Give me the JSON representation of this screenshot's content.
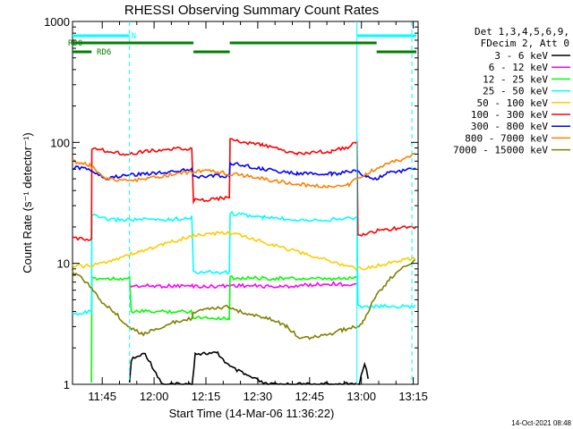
{
  "chart_data": {
    "type": "line",
    "title": "RHESSI Observing Summary Count Rates",
    "xlabel": "Start Time (14-Mar-06 11:36:22)",
    "ylabel": "Count Rate (s⁻¹ detector⁻¹)",
    "yscale": "log",
    "ylim": [
      1,
      1000
    ],
    "xlim_minutes": [
      0,
      100
    ],
    "x_ticks": [
      {
        "t": 8.6,
        "label": "11:45"
      },
      {
        "t": 23.6,
        "label": "12:00"
      },
      {
        "t": 38.6,
        "label": "12:15"
      },
      {
        "t": 53.6,
        "label": "12:30"
      },
      {
        "t": 68.6,
        "label": "12:45"
      },
      {
        "t": 83.6,
        "label": "13:00"
      },
      {
        "t": 98.6,
        "label": "13:15"
      }
    ],
    "y_ticks": [
      {
        "v": 1,
        "label": "1"
      },
      {
        "v": 10,
        "label": "10"
      },
      {
        "v": 100,
        "label": "100"
      },
      {
        "v": 1000,
        "label": "1000"
      }
    ],
    "legend_header": [
      "Det 1,3,4,5,6,9,",
      "FDecim 2, Att 0"
    ],
    "legend_placement": "right",
    "footer_date": "14-Oct-2021 08:48",
    "flags": {
      "n_label": "N",
      "rd0_label": "RD0",
      "rd6_label": "RD6",
      "n_color": "#00ffff",
      "rd_color": "#008000",
      "n_intervals": [
        [
          0,
          16.5
        ],
        [
          82.3,
          99.5
        ]
      ],
      "rd0_intervals": [
        [
          0,
          35
        ],
        [
          45.5,
          88
        ]
      ],
      "rd6_intervals": [
        [
          0,
          5.5
        ],
        [
          35,
          45.5
        ],
        [
          88,
          99.5
        ]
      ]
    },
    "vlines": {
      "color": "#00ffff",
      "solid": [
        82.3
      ],
      "dashed": [
        16.5,
        98.2
      ]
    },
    "series": [
      {
        "name": "3 - 6 keV",
        "color": "#000000",
        "points": [
          [
            16.5,
            1
          ],
          [
            17,
            1.6
          ],
          [
            21,
            1.8
          ],
          [
            26,
            1
          ],
          [
            34.6,
            1
          ],
          [
            35.5,
            1.8
          ],
          [
            42,
            1.8
          ],
          [
            45.5,
            1.4
          ],
          [
            50,
            1.2
          ],
          [
            56,
            1
          ],
          [
            83,
            1
          ],
          [
            84.5,
            1.5
          ],
          [
            86,
            1
          ]
        ]
      },
      {
        "name": "6 - 12 keV",
        "color": "#ff00ff",
        "points": [
          [
            16.5,
            6.5
          ],
          [
            34.8,
            6.5
          ],
          [
            35,
            6.5
          ],
          [
            38,
            6.4
          ],
          [
            42,
            6.5
          ],
          [
            45.4,
            6.5
          ],
          [
            45.6,
            6.6
          ],
          [
            60,
            6.4
          ],
          [
            75,
            6.8
          ],
          [
            82.3,
            6.6
          ]
        ]
      },
      {
        "name": "12 - 25 keV",
        "color": "#00ff00",
        "points": [
          [
            5.5,
            1
          ],
          [
            5.6,
            7.5
          ],
          [
            16.5,
            7.5
          ],
          [
            17,
            4
          ],
          [
            25,
            4
          ],
          [
            34.5,
            4
          ],
          [
            35,
            3.6
          ],
          [
            45.4,
            3.5
          ],
          [
            45.6,
            7.6
          ],
          [
            60,
            7.5
          ],
          [
            75,
            7.4
          ],
          [
            82.3,
            7.6
          ]
        ]
      },
      {
        "name": "25 - 50 keV",
        "color": "#00ffff",
        "points": [
          [
            0,
            3.8
          ],
          [
            5.5,
            4
          ],
          [
            5.6,
            25
          ],
          [
            10,
            23
          ],
          [
            16,
            23
          ],
          [
            20,
            23
          ],
          [
            28,
            23
          ],
          [
            34.5,
            24
          ],
          [
            35,
            8.5
          ],
          [
            45.4,
            8.4
          ],
          [
            45.6,
            26
          ],
          [
            55,
            24
          ],
          [
            65,
            23
          ],
          [
            75,
            23
          ],
          [
            82.3,
            24
          ],
          [
            82.6,
            4.4
          ],
          [
            99.5,
            4.4
          ]
        ]
      },
      {
        "name": "50 - 100 keV",
        "color": "#ffcc00",
        "points": [
          [
            0,
            9.5
          ],
          [
            5.5,
            9.5
          ],
          [
            35,
            17
          ],
          [
            45.4,
            18
          ],
          [
            82.6,
            9
          ],
          [
            88,
            9.5
          ],
          [
            94,
            10.5
          ],
          [
            99.5,
            11
          ]
        ]
      },
      {
        "name": "100 - 300 keV",
        "color": "#ff0000",
        "points": [
          [
            0,
            16
          ],
          [
            5.5,
            16
          ],
          [
            5.6,
            90
          ],
          [
            10,
            85
          ],
          [
            16,
            80
          ],
          [
            22,
            85
          ],
          [
            30,
            88
          ],
          [
            34.5,
            90
          ],
          [
            35,
            33
          ],
          [
            45.4,
            35
          ],
          [
            45.6,
            105
          ],
          [
            55,
            95
          ],
          [
            65,
            80
          ],
          [
            75,
            85
          ],
          [
            80,
            92
          ],
          [
            82.3,
            100
          ],
          [
            82.6,
            17
          ],
          [
            90,
            19
          ],
          [
            99.5,
            20
          ]
        ]
      },
      {
        "name": "300 - 800 keV",
        "color": "#0000ff",
        "points": [
          [
            0,
            62
          ],
          [
            5,
            60
          ],
          [
            10,
            50
          ],
          [
            14,
            53
          ],
          [
            20,
            55
          ],
          [
            28,
            57
          ],
          [
            34.5,
            60
          ],
          [
            35,
            52
          ],
          [
            45.4,
            53
          ],
          [
            45.6,
            68
          ],
          [
            55,
            60
          ],
          [
            65,
            55
          ],
          [
            75,
            55
          ],
          [
            82.3,
            58
          ],
          [
            85,
            52
          ],
          [
            88,
            50
          ],
          [
            92,
            57
          ],
          [
            99.5,
            60
          ]
        ]
      },
      {
        "name": "800 - 7000 keV",
        "color": "#ff8000",
        "points": [
          [
            0,
            70
          ],
          [
            5,
            65
          ],
          [
            10,
            50
          ],
          [
            15,
            48
          ],
          [
            22,
            50
          ],
          [
            30,
            55
          ],
          [
            36,
            58
          ],
          [
            42,
            57
          ],
          [
            48,
            54
          ],
          [
            55,
            50
          ],
          [
            65,
            45
          ],
          [
            74,
            43
          ],
          [
            80,
            45
          ],
          [
            82.3,
            50
          ],
          [
            85,
            55
          ],
          [
            90,
            65
          ],
          [
            95,
            72
          ],
          [
            99.5,
            80
          ]
        ]
      },
      {
        "name": "7000 - 15000 keV",
        "color": "#808000",
        "points": [
          [
            0,
            8.5
          ],
          [
            4,
            7
          ],
          [
            8,
            5
          ],
          [
            12,
            4
          ],
          [
            16,
            3
          ],
          [
            20,
            2.6
          ],
          [
            26,
            3
          ],
          [
            30,
            3.3
          ],
          [
            34.5,
            3.5
          ],
          [
            35,
            3.9
          ],
          [
            40,
            4.2
          ],
          [
            45.4,
            4.4
          ],
          [
            50,
            3.8
          ],
          [
            56,
            3.6
          ],
          [
            62,
            3
          ],
          [
            66,
            2.4
          ],
          [
            72,
            2.5
          ],
          [
            78,
            2.8
          ],
          [
            82.3,
            3
          ],
          [
            84,
            3.3
          ],
          [
            88,
            5.5
          ],
          [
            92,
            7.5
          ],
          [
            96,
            9.5
          ],
          [
            99.5,
            10.5
          ]
        ]
      }
    ]
  }
}
